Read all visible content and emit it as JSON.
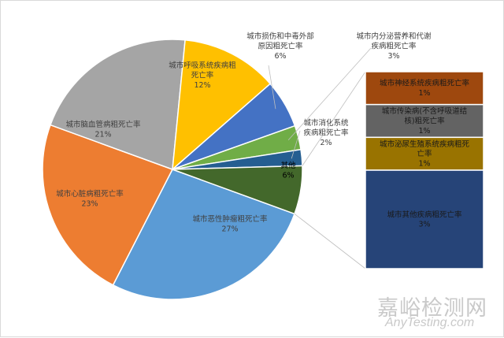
{
  "chart_data": {
    "type": "pie",
    "title": "",
    "slices": [
      {
        "label": "城市恶性肿瘤粗死亡率",
        "pct_label": "27%",
        "value": 27,
        "color": "#5b9bd5"
      },
      {
        "label": "城市心脏病粗死亡率",
        "pct_label": "23%",
        "value": 23,
        "color": "#ed7d31"
      },
      {
        "label": "城市脑血管病粗死亡率",
        "pct_label": "21%",
        "value": 21,
        "color": "#a5a5a5"
      },
      {
        "label": "城市呼吸系统疾病粗死亡率",
        "pct_label": "12%",
        "value": 12,
        "color": "#ffc000"
      },
      {
        "label": "城市损伤和中毒外部原因粗死亡率",
        "pct_label": "6%",
        "value": 6,
        "color": "#4472c4"
      },
      {
        "label": "城市内分泌营养和代谢疾病粗死亡率",
        "pct_label": "3%",
        "value": 3,
        "color": "#70ad47"
      },
      {
        "label": "城市消化系统疾病粗死亡率",
        "pct_label": "2%",
        "value": 2,
        "color": "#255e91"
      },
      {
        "label": "其他",
        "pct_label": "6%",
        "value": 6,
        "color": "#43682b"
      }
    ],
    "breakdown_of": "其他",
    "breakdown": [
      {
        "label": "城市神经系统疾病粗死亡率",
        "pct_label": "1%",
        "value": 1,
        "color": "#9e480e"
      },
      {
        "label": "城市传染病(不含呼吸道结核)粗死亡率",
        "pct_label": "1%",
        "value": 1,
        "color": "#636363"
      },
      {
        "label": "城市泌尿生殖系统疾病粗死亡率",
        "pct_label": "1%",
        "value": 1,
        "color": "#997300"
      },
      {
        "label": "城市其他疾病粗死亡率",
        "pct_label": "3%",
        "value": 3,
        "color": "#264478"
      }
    ]
  },
  "watermark": {
    "cn": "嘉峪检测网",
    "en": "AnyTesting.com"
  }
}
